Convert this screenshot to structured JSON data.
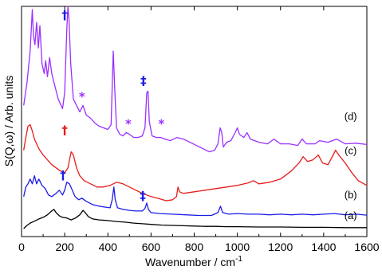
{
  "chart_data": {
    "type": "line",
    "xlabel": "Wavenumber / cm",
    "xlabel_sup": "-1",
    "ylabel": "S(Q,ω) / Arb. units",
    "xlim": [
      0,
      1600
    ],
    "x_ticks": [
      0,
      200,
      400,
      600,
      800,
      1000,
      1200,
      1400,
      1600
    ],
    "x_tick_labels": [
      "0",
      "200",
      "400",
      "600",
      "800",
      "1000",
      "1200",
      "1400",
      "1600"
    ],
    "y_ticks_shown": false,
    "grid": false,
    "series": [
      {
        "name": "(d)",
        "color": "#9b30ff",
        "points": [
          [
            10,
            3.9
          ],
          [
            25,
            4.6
          ],
          [
            40,
            5.6
          ],
          [
            50,
            6.9
          ],
          [
            55,
            6.1
          ],
          [
            62,
            5.8
          ],
          [
            70,
            6.5
          ],
          [
            78,
            5.7
          ],
          [
            85,
            6.4
          ],
          [
            95,
            5.2
          ],
          [
            105,
            4.9
          ],
          [
            112,
            5.3
          ],
          [
            120,
            4.8
          ],
          [
            130,
            5.4
          ],
          [
            140,
            4.9
          ],
          [
            155,
            4.5
          ],
          [
            170,
            4.1
          ],
          [
            190,
            3.8
          ],
          [
            200,
            4.3
          ],
          [
            210,
            6.3
          ],
          [
            215,
            7.0
          ],
          [
            220,
            6.6
          ],
          [
            228,
            5.2
          ],
          [
            240,
            4.1
          ],
          [
            255,
            3.9
          ],
          [
            270,
            3.7
          ],
          [
            285,
            3.9
          ],
          [
            300,
            3.6
          ],
          [
            320,
            3.5
          ],
          [
            340,
            3.35
          ],
          [
            360,
            3.25
          ],
          [
            380,
            3.2
          ],
          [
            400,
            3.15
          ],
          [
            415,
            3.3
          ],
          [
            425,
            5.6
          ],
          [
            432,
            4.4
          ],
          [
            440,
            3.2
          ],
          [
            455,
            3.0
          ],
          [
            470,
            2.95
          ],
          [
            485,
            3.05
          ],
          [
            500,
            3.0
          ],
          [
            520,
            2.9
          ],
          [
            540,
            2.9
          ],
          [
            560,
            2.95
          ],
          [
            572,
            3.2
          ],
          [
            580,
            4.3
          ],
          [
            586,
            4.35
          ],
          [
            592,
            3.4
          ],
          [
            605,
            2.95
          ],
          [
            625,
            2.9
          ],
          [
            645,
            2.9
          ],
          [
            665,
            2.85
          ],
          [
            690,
            2.8
          ],
          [
            720,
            2.9
          ],
          [
            750,
            2.85
          ],
          [
            780,
            2.75
          ],
          [
            810,
            2.65
          ],
          [
            840,
            2.55
          ],
          [
            870,
            2.45
          ],
          [
            895,
            2.5
          ],
          [
            910,
            2.7
          ],
          [
            920,
            3.2
          ],
          [
            928,
            3.05
          ],
          [
            935,
            2.6
          ],
          [
            950,
            2.75
          ],
          [
            970,
            2.8
          ],
          [
            990,
            3.05
          ],
          [
            1000,
            3.2
          ],
          [
            1010,
            3.0
          ],
          [
            1030,
            2.9
          ],
          [
            1045,
            3.05
          ],
          [
            1060,
            2.85
          ],
          [
            1100,
            2.75
          ],
          [
            1140,
            2.7
          ],
          [
            1170,
            2.85
          ],
          [
            1200,
            2.7
          ],
          [
            1240,
            2.7
          ],
          [
            1280,
            2.65
          ],
          [
            1300,
            2.85
          ],
          [
            1320,
            2.7
          ],
          [
            1360,
            2.7
          ],
          [
            1380,
            2.8
          ],
          [
            1420,
            2.75
          ],
          [
            1460,
            2.85
          ],
          [
            1500,
            2.7
          ],
          [
            1550,
            2.72
          ],
          [
            1600,
            2.68
          ]
        ]
      },
      {
        "name": "(c)",
        "color": "#e81c1c",
        "points": [
          [
            10,
            2.5
          ],
          [
            20,
            2.9
          ],
          [
            30,
            3.25
          ],
          [
            40,
            3.3
          ],
          [
            50,
            3.1
          ],
          [
            60,
            2.85
          ],
          [
            80,
            2.55
          ],
          [
            100,
            2.35
          ],
          [
            120,
            2.2
          ],
          [
            140,
            2.05
          ],
          [
            160,
            1.95
          ],
          [
            180,
            1.85
          ],
          [
            200,
            1.8
          ],
          [
            215,
            1.95
          ],
          [
            230,
            2.45
          ],
          [
            240,
            2.35
          ],
          [
            255,
            1.95
          ],
          [
            270,
            1.7
          ],
          [
            290,
            1.55
          ],
          [
            320,
            1.45
          ],
          [
            350,
            1.35
          ],
          [
            380,
            1.35
          ],
          [
            410,
            1.4
          ],
          [
            440,
            1.5
          ],
          [
            470,
            1.45
          ],
          [
            500,
            1.35
          ],
          [
            530,
            1.25
          ],
          [
            560,
            1.15
          ],
          [
            600,
            1.05
          ],
          [
            640,
            0.98
          ],
          [
            670,
            0.92
          ],
          [
            700,
            0.95
          ],
          [
            718,
            1.05
          ],
          [
            725,
            1.35
          ],
          [
            732,
            1.2
          ],
          [
            750,
            1.15
          ],
          [
            800,
            1.2
          ],
          [
            850,
            1.25
          ],
          [
            900,
            1.3
          ],
          [
            950,
            1.35
          ],
          [
            1000,
            1.4
          ],
          [
            1050,
            1.48
          ],
          [
            1075,
            1.55
          ],
          [
            1100,
            1.45
          ],
          [
            1150,
            1.5
          ],
          [
            1200,
            1.6
          ],
          [
            1250,
            1.85
          ],
          [
            1285,
            2.1
          ],
          [
            1305,
            2.3
          ],
          [
            1325,
            2.15
          ],
          [
            1350,
            2.2
          ],
          [
            1375,
            2.35
          ],
          [
            1395,
            2.1
          ],
          [
            1420,
            2.05
          ],
          [
            1440,
            2.3
          ],
          [
            1455,
            2.5
          ],
          [
            1470,
            2.35
          ],
          [
            1500,
            2.1
          ],
          [
            1530,
            1.8
          ],
          [
            1560,
            1.55
          ],
          [
            1600,
            1.4
          ]
        ]
      },
      {
        "name": "(b)",
        "color": "#1c1ce8",
        "points": [
          [
            10,
            1.05
          ],
          [
            20,
            1.35
          ],
          [
            30,
            1.45
          ],
          [
            40,
            1.6
          ],
          [
            50,
            1.45
          ],
          [
            60,
            1.7
          ],
          [
            70,
            1.45
          ],
          [
            80,
            1.6
          ],
          [
            95,
            1.4
          ],
          [
            110,
            1.3
          ],
          [
            125,
            1.1
          ],
          [
            140,
            1.05
          ],
          [
            160,
            1.15
          ],
          [
            175,
            1.25
          ],
          [
            190,
            1.1
          ],
          [
            200,
            1.25
          ],
          [
            210,
            1.5
          ],
          [
            222,
            1.45
          ],
          [
            235,
            1.25
          ],
          [
            248,
            1.05
          ],
          [
            265,
            0.95
          ],
          [
            280,
            1.0
          ],
          [
            300,
            0.9
          ],
          [
            330,
            0.8
          ],
          [
            360,
            0.75
          ],
          [
            390,
            0.72
          ],
          [
            410,
            0.7
          ],
          [
            420,
            0.95
          ],
          [
            428,
            1.35
          ],
          [
            434,
            0.95
          ],
          [
            445,
            0.7
          ],
          [
            470,
            0.65
          ],
          [
            500,
            0.62
          ],
          [
            530,
            0.6
          ],
          [
            560,
            0.6
          ],
          [
            572,
            0.68
          ],
          [
            580,
            0.85
          ],
          [
            588,
            0.65
          ],
          [
            600,
            0.55
          ],
          [
            640,
            0.52
          ],
          [
            700,
            0.5
          ],
          [
            760,
            0.48
          ],
          [
            820,
            0.46
          ],
          [
            880,
            0.46
          ],
          [
            910,
            0.55
          ],
          [
            922,
            0.75
          ],
          [
            932,
            0.55
          ],
          [
            960,
            0.5
          ],
          [
            1000,
            0.52
          ],
          [
            1050,
            0.5
          ],
          [
            1100,
            0.5
          ],
          [
            1150,
            0.48
          ],
          [
            1200,
            0.5
          ],
          [
            1250,
            0.48
          ],
          [
            1300,
            0.5
          ],
          [
            1350,
            0.48
          ],
          [
            1400,
            0.5
          ],
          [
            1450,
            0.52
          ],
          [
            1500,
            0.48
          ],
          [
            1550,
            0.5
          ],
          [
            1600,
            0.47
          ]
        ]
      },
      {
        "name": "(a)",
        "color": "#000000",
        "points": [
          [
            10,
            0.05
          ],
          [
            25,
            0.15
          ],
          [
            40,
            0.22
          ],
          [
            60,
            0.28
          ],
          [
            80,
            0.35
          ],
          [
            100,
            0.4
          ],
          [
            120,
            0.48
          ],
          [
            140,
            0.6
          ],
          [
            150,
            0.65
          ],
          [
            160,
            0.55
          ],
          [
            175,
            0.45
          ],
          [
            190,
            0.4
          ],
          [
            210,
            0.38
          ],
          [
            230,
            0.32
          ],
          [
            250,
            0.38
          ],
          [
            270,
            0.48
          ],
          [
            285,
            0.62
          ],
          [
            295,
            0.55
          ],
          [
            310,
            0.42
          ],
          [
            330,
            0.35
          ],
          [
            360,
            0.32
          ],
          [
            400,
            0.3
          ],
          [
            440,
            0.27
          ],
          [
            480,
            0.25
          ],
          [
            520,
            0.22
          ],
          [
            560,
            0.2
          ],
          [
            600,
            0.18
          ],
          [
            650,
            0.16
          ],
          [
            700,
            0.15
          ],
          [
            750,
            0.14
          ],
          [
            800,
            0.13
          ],
          [
            850,
            0.12
          ],
          [
            900,
            0.12
          ],
          [
            950,
            0.11
          ],
          [
            1000,
            0.11
          ],
          [
            1100,
            0.1
          ],
          [
            1200,
            0.1
          ],
          [
            1300,
            0.09
          ],
          [
            1400,
            0.09
          ],
          [
            1500,
            0.08
          ],
          [
            1600,
            0.08
          ]
        ]
      }
    ],
    "annotations": [
      {
        "text": "†",
        "x": 200,
        "y": 6.6,
        "color": "#1c1ce8",
        "id": "dagger-d"
      },
      {
        "text": "‡",
        "x": 565,
        "y": 4.55,
        "color": "#1c1ce8",
        "id": "ddagger-d"
      },
      {
        "text": "*",
        "x": 280,
        "y": 4.05,
        "color": "#9b30ff",
        "id": "asterisk-1"
      },
      {
        "text": "*",
        "x": 495,
        "y": 3.2,
        "color": "#9b30ff",
        "id": "asterisk-2"
      },
      {
        "text": "*",
        "x": 648,
        "y": 3.2,
        "color": "#9b30ff",
        "id": "asterisk-3"
      },
      {
        "text": "†",
        "x": 200,
        "y": 3.0,
        "color": "#e81c1c",
        "id": "dagger-c"
      },
      {
        "text": "†",
        "x": 192,
        "y": 1.6,
        "color": "#1c1ce8",
        "id": "dagger-b"
      },
      {
        "text": "‡",
        "x": 562,
        "y": 0.95,
        "color": "#1c1ce8",
        "id": "ddagger-b"
      }
    ],
    "curve_labels": [
      {
        "text": "(d)",
        "x": 1525,
        "y": 3.45
      },
      {
        "text": "(c)",
        "x": 1525,
        "y": 2.38
      },
      {
        "text": "(b)",
        "x": 1525,
        "y": 1.0
      },
      {
        "text": "(a)",
        "x": 1525,
        "y": 0.35
      }
    ]
  }
}
